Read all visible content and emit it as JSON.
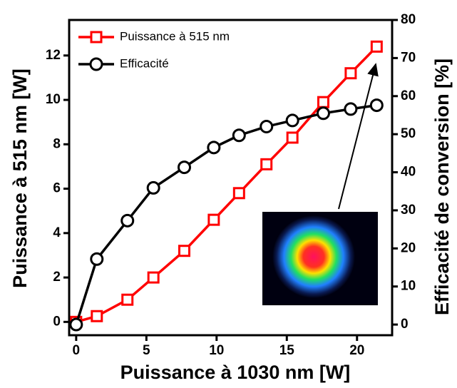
{
  "chart_data": {
    "type": "line",
    "x_label": "Puissance à 1030 nm [W]",
    "y_label": "Puissance à 515 nm [W]",
    "y2_label": "Efficacité de conversion  [%]",
    "x": [
      0,
      1.47,
      3.65,
      5.5,
      7.7,
      9.8,
      11.6,
      13.55,
      15.4,
      17.6,
      19.55,
      21.4
    ],
    "series": [
      {
        "name": "Puissance à 515 nm",
        "color": "#ff0000",
        "marker": "square",
        "values": [
          0,
          0.26,
          1.0,
          2.0,
          3.2,
          4.6,
          5.8,
          7.1,
          8.3,
          9.9,
          11.2,
          12.4
        ]
      },
      {
        "name": "Efficacité",
        "color": "#000000",
        "marker": "circle",
        "axis": "y2",
        "values": [
          0,
          17.2,
          27.3,
          35.9,
          41.3,
          46.5,
          49.7,
          52,
          53.6,
          55.5,
          56.6,
          57.6
        ]
      }
    ],
    "xlim": [
      -0.5,
      22.5
    ],
    "xticks": [
      0,
      5,
      10,
      15,
      20
    ],
    "ylim": [
      -0.6,
      13.6
    ],
    "yticks": [
      0,
      2,
      4,
      6,
      8,
      10,
      12
    ],
    "y2lim": [
      -2.8,
      80
    ],
    "y2ticks": [
      0,
      10,
      20,
      30,
      40,
      50,
      60,
      70,
      80
    ],
    "legend": "upper-left"
  }
}
